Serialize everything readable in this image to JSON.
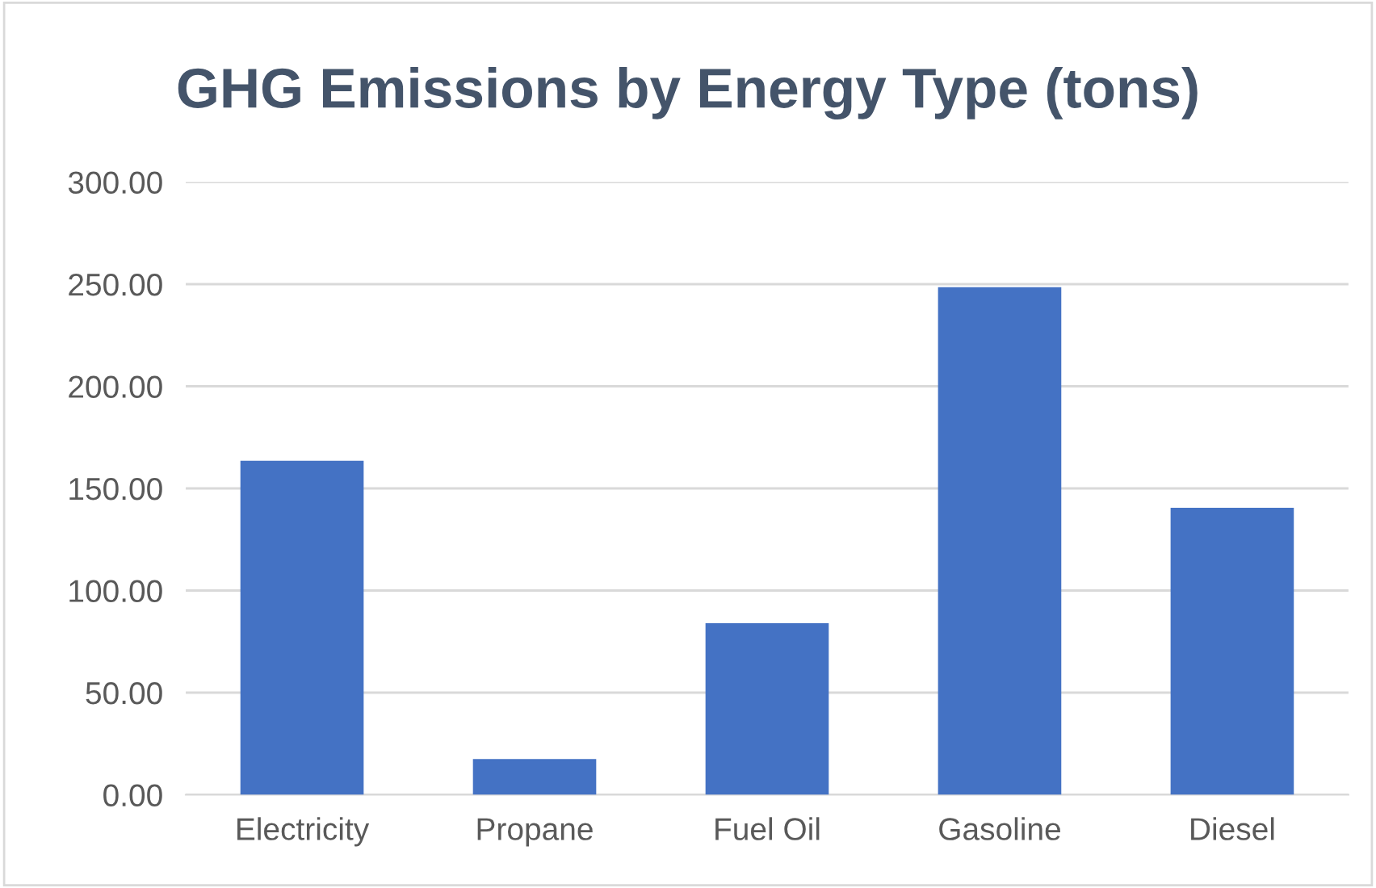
{
  "chart_data": {
    "type": "bar",
    "title": "GHG Emissions by Energy Type (tons)",
    "categories": [
      "Electricity",
      "Propane",
      "Fuel Oil",
      "Gasoline",
      "Diesel"
    ],
    "values": [
      163.5,
      17.5,
      84,
      248.5,
      140.5
    ],
    "color": "#4472c4",
    "ylim": [
      0,
      300
    ],
    "yticks": [
      {
        "value": 0,
        "label": "0.00"
      },
      {
        "value": 50,
        "label": "50.00"
      },
      {
        "value": 100,
        "label": "100.00"
      },
      {
        "value": 150,
        "label": "150.00"
      },
      {
        "value": 200,
        "label": "200.00"
      },
      {
        "value": 250,
        "label": "250.00"
      },
      {
        "value": 300,
        "label": "300.00"
      }
    ],
    "grid": "y"
  }
}
